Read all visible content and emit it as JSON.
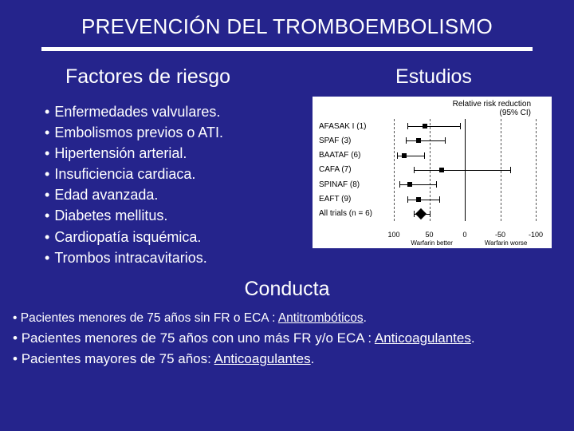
{
  "title": "PREVENCIÓN DEL TROMBOEMBOLISMO",
  "left": {
    "heading": "Factores de riesgo",
    "items": [
      "Enfermedades valvulares.",
      "Embolismos previos o ATI.",
      "Hipertensión arterial.",
      "Insuficiencia cardiaca.",
      "Edad avanzada.",
      "Diabetes mellitus.",
      "Cardiopatía isquémica.",
      "Trombos intracavitarios."
    ]
  },
  "right": {
    "heading": "Estudios",
    "forest": {
      "title_line1": "Relative risk reduction",
      "title_line2": "(95% CI)",
      "xmin": -100,
      "xmax": 100,
      "ticks": [
        {
          "value": 100,
          "label": "100"
        },
        {
          "value": 50,
          "label": "50"
        },
        {
          "value": 0,
          "label": "0"
        },
        {
          "value": -50,
          "label": "-50"
        },
        {
          "value": -100,
          "label": "-100"
        }
      ],
      "axis_left_label": "Warfarin better",
      "axis_right_label": "Warfarin worse",
      "rows": [
        {
          "label": "AFASAK I (1)",
          "lo": 7,
          "pt": 56,
          "hi": 81,
          "type": "square"
        },
        {
          "label": "SPAF (3)",
          "lo": 28,
          "pt": 65,
          "hi": 83,
          "type": "square"
        },
        {
          "label": "BAATAF (6)",
          "lo": 57,
          "pt": 85,
          "hi": 95,
          "type": "square"
        },
        {
          "label": "CAFA (7)",
          "lo": -64,
          "pt": 33,
          "hi": 72,
          "type": "square"
        },
        {
          "label": "SPINAF (8)",
          "lo": 40,
          "pt": 78,
          "hi": 92,
          "type": "square"
        },
        {
          "label": "EAFT (9)",
          "lo": 36,
          "pt": 65,
          "hi": 81,
          "type": "square"
        },
        {
          "label": "All trials (n = 6)",
          "lo": 49,
          "pt": 62,
          "hi": 72,
          "type": "diamond"
        }
      ],
      "colors": {
        "background": "#ffffff",
        "grid_dashed": "#555555",
        "grid_solid": "#000000",
        "line": "#000000",
        "text": "#000000"
      }
    }
  },
  "conducta": {
    "heading": "Conducta",
    "items": [
      {
        "prefix": "Pacientes menores de 75 años sin FR o ECA :  ",
        "link": "Antitrombóticos",
        "suffix": "."
      },
      {
        "prefix": "Pacientes menores de 75 años con uno más FR y/o ECA :  ",
        "link": "Anticoagulantes",
        "suffix": "."
      },
      {
        "prefix": "Pacientes mayores de 75 años: ",
        "link": "Anticoagulantes",
        "suffix": "."
      }
    ]
  },
  "colors": {
    "page_bg": "#25248c",
    "text": "#ffffff",
    "rule": "#ffffff"
  }
}
